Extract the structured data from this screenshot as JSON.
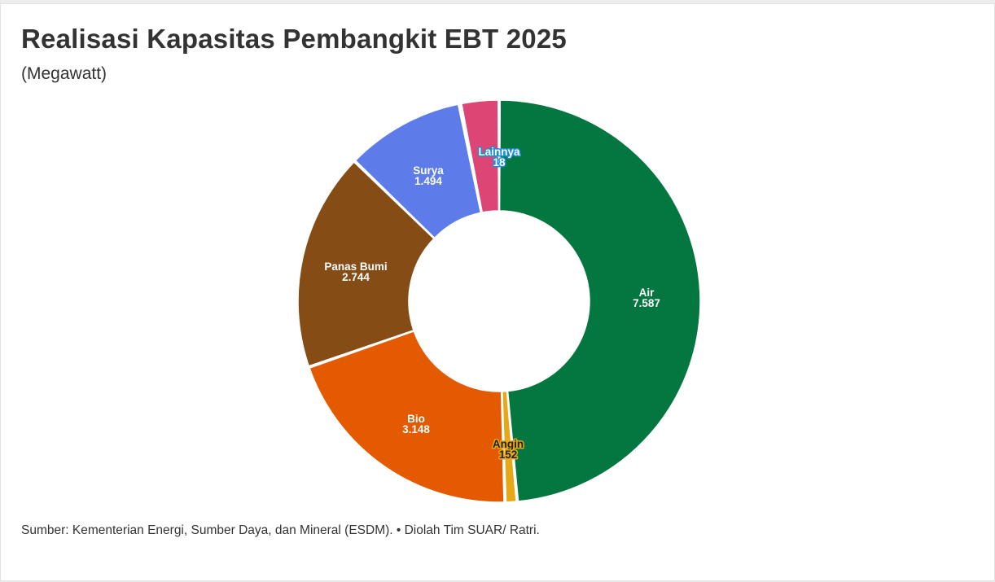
{
  "header": {
    "title": "Realisasi Kapasitas Pembangkit EBT 2025",
    "subtitle": "(Megawatt)"
  },
  "footer": {
    "source": "Sumber: Kementerian Energi, Sumber Daya, dan Mineral (ESDM). • Diolah Tim SUAR/ Ratri."
  },
  "chart_data": {
    "type": "pie",
    "title": "Realisasi Kapasitas Pembangkit EBT 2025",
    "subtitle": "(Megawatt)",
    "donut": true,
    "legend": "none",
    "categories": [
      "Air",
      "Angin",
      "Bio",
      "Panas Bumi",
      "Surya",
      "Lainnya"
    ],
    "values": [
      7587,
      152,
      3148,
      2744,
      1494,
      18
    ],
    "value_labels": [
      "7.587",
      "152",
      "3.148",
      "2.744",
      "1.494",
      "18"
    ],
    "colors": [
      "#03773f",
      "#e6a817",
      "#e45a00",
      "#864c15",
      "#5e7bea",
      "#dd4575"
    ],
    "trailing_slice": {
      "value": 480,
      "color": "#dd4575"
    },
    "label_styles": {
      "Angin": {
        "text_color": "#222222",
        "outline": "#e6a817"
      },
      "Lainnya": {
        "text_color": "#ffffff",
        "outline": "#1a8fd6"
      }
    }
  }
}
